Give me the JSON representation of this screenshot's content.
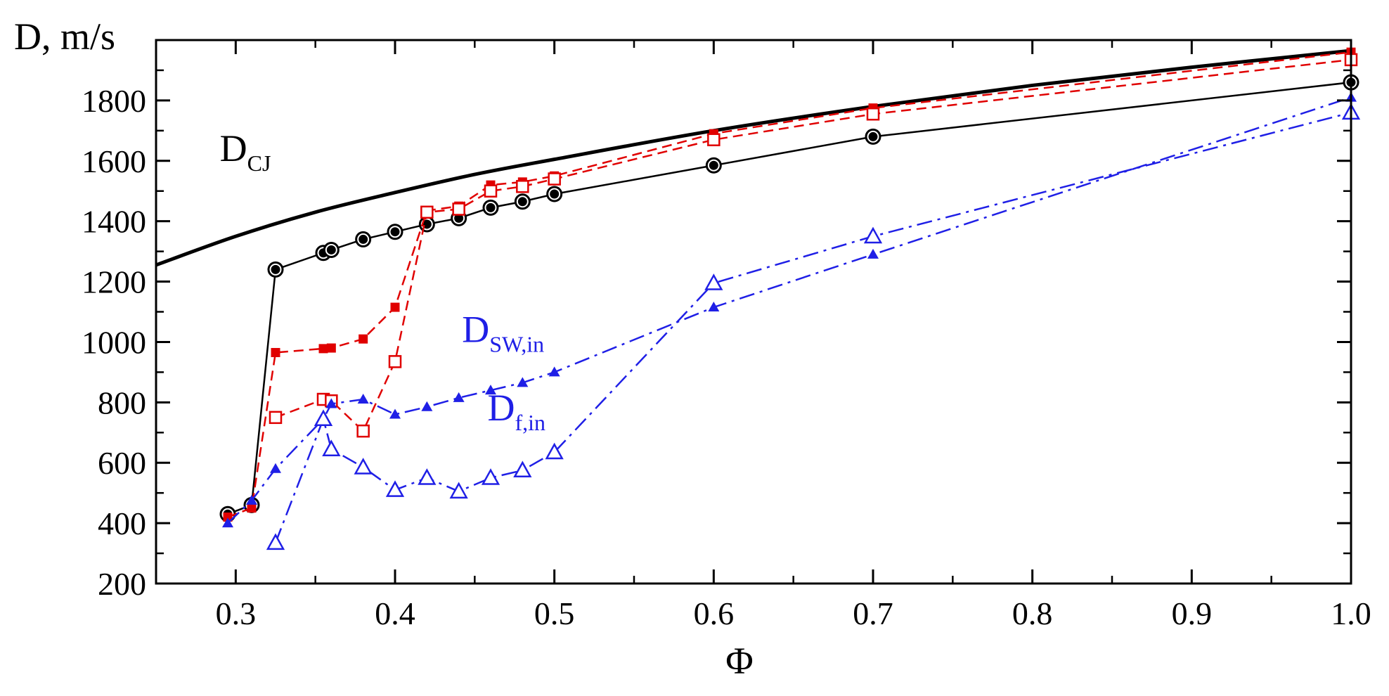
{
  "chart_data": {
    "type": "line",
    "title": "",
    "xlabel": "Φ",
    "ylabel": "D, m/s",
    "xlim": [
      0.25,
      1.0
    ],
    "ylim": [
      200,
      2000
    ],
    "xticks": [
      0.3,
      0.4,
      0.5,
      0.6,
      0.7,
      0.8,
      0.9,
      1.0
    ],
    "xtick_labels": [
      "0.3",
      "0.4",
      "0.5",
      "0.6",
      "0.7",
      "0.8",
      "0.9",
      "1.0"
    ],
    "yticks": [
      200,
      400,
      600,
      800,
      1000,
      1200,
      1400,
      1600,
      1800
    ],
    "ytick_labels": [
      "200",
      "400",
      "600",
      "800",
      "1000",
      "1200",
      "1400",
      "1600",
      "1800"
    ],
    "grid": false,
    "annotations": [
      {
        "id": "dcj",
        "main": "D",
        "sub": "CJ",
        "color": "#000000",
        "x": 0.29,
        "y": 1600
      },
      {
        "id": "dsw",
        "main": "D",
        "sub": "SW,in",
        "color": "#1f1fe6",
        "x": 0.442,
        "y": 1000
      },
      {
        "id": "df",
        "main": "D",
        "sub": "f,in",
        "color": "#1f1fe6",
        "x": 0.458,
        "y": 740
      }
    ],
    "series": [
      {
        "name": "D_CJ",
        "style": "solid-thick",
        "color": "#000000",
        "marker": "none",
        "x": [
          0.25,
          0.3,
          0.35,
          0.4,
          0.45,
          0.5,
          0.6,
          0.7,
          0.8,
          0.9,
          1.0
        ],
        "y": [
          1255,
          1350,
          1430,
          1495,
          1555,
          1605,
          1700,
          1780,
          1850,
          1910,
          1965
        ]
      },
      {
        "name": "Black circles (measured D)",
        "style": "solid",
        "color": "#000000",
        "marker": "circle-dot",
        "x": [
          0.295,
          0.31,
          0.325,
          0.355,
          0.36,
          0.38,
          0.4,
          0.42,
          0.44,
          0.46,
          0.48,
          0.5,
          0.6,
          0.7,
          1.0
        ],
        "y": [
          430,
          460,
          1240,
          1295,
          1305,
          1340,
          1365,
          1390,
          1410,
          1445,
          1465,
          1490,
          1585,
          1680,
          1860
        ]
      },
      {
        "name": "Red filled squares",
        "style": "dashed",
        "color": "#e00000",
        "marker": "square-filled",
        "x": [
          0.295,
          0.31,
          0.325,
          0.355,
          0.36,
          0.38,
          0.4,
          0.42,
          0.44,
          0.46,
          0.48,
          0.5,
          0.6,
          0.7,
          1.0
        ],
        "y": [
          420,
          450,
          965,
          978,
          980,
          1010,
          1115,
          1435,
          1450,
          1520,
          1530,
          1550,
          1690,
          1775,
          1960
        ]
      },
      {
        "name": "Red open squares",
        "style": "dashed",
        "color": "#e00000",
        "marker": "square-open",
        "x": [
          0.325,
          0.355,
          0.36,
          0.38,
          0.4,
          0.42,
          0.44,
          0.46,
          0.48,
          0.5,
          0.6,
          0.7,
          1.0
        ],
        "y": [
          750,
          810,
          805,
          705,
          935,
          1430,
          1440,
          1500,
          1515,
          1540,
          1670,
          1755,
          1935
        ]
      },
      {
        "name": "D_SW,in (blue filled triangles)",
        "style": "dashdot",
        "color": "#1f1fe6",
        "marker": "triangle-filled",
        "x": [
          0.295,
          0.31,
          0.325,
          0.355,
          0.36,
          0.38,
          0.4,
          0.42,
          0.44,
          0.46,
          0.48,
          0.5,
          0.6,
          0.7,
          1.0
        ],
        "y": [
          400,
          475,
          580,
          745,
          795,
          810,
          760,
          785,
          815,
          840,
          865,
          900,
          1115,
          1290,
          1810
        ]
      },
      {
        "name": "D_f,in (blue open triangles)",
        "style": "dashdot",
        "color": "#1f1fe6",
        "marker": "triangle-open",
        "x": [
          0.325,
          0.355,
          0.36,
          0.38,
          0.4,
          0.42,
          0.44,
          0.46,
          0.48,
          0.5,
          0.6,
          0.7,
          1.0
        ],
        "y": [
          335,
          745,
          645,
          585,
          510,
          550,
          505,
          550,
          575,
          635,
          1195,
          1350,
          1760
        ]
      }
    ]
  }
}
